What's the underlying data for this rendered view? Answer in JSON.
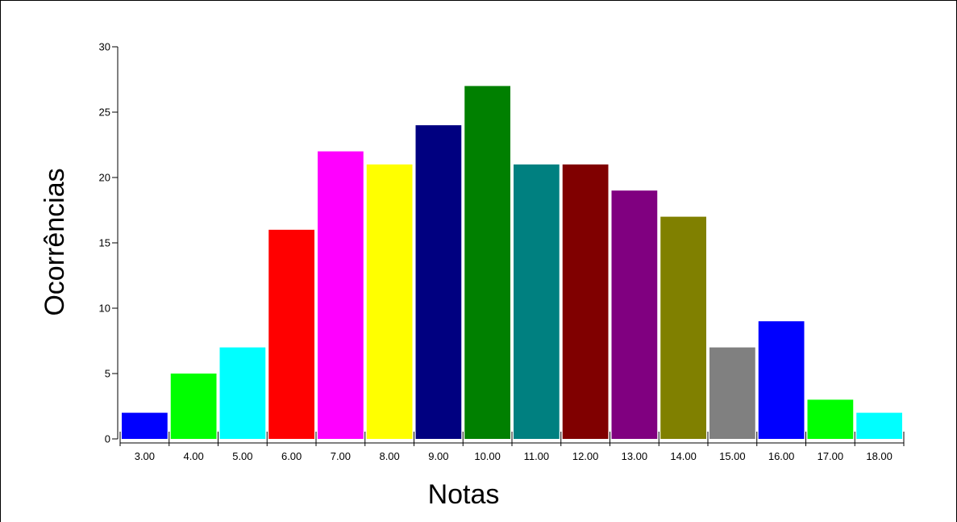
{
  "chart_data": {
    "type": "bar",
    "title": "",
    "xlabel": "Notas",
    "ylabel": "Ocorrências",
    "ylim": [
      0,
      30
    ],
    "yticks": [
      "0",
      "5",
      "10",
      "15",
      "20",
      "25",
      "30"
    ],
    "categories": [
      "3.00",
      "4.00",
      "5.00",
      "6.00",
      "7.00",
      "8.00",
      "9.00",
      "10.00",
      "11.00",
      "12.00",
      "13.00",
      "14.00",
      "15.00",
      "16.00",
      "17.00",
      "18.00"
    ],
    "values": [
      2,
      5,
      7,
      16,
      22,
      21,
      24,
      27,
      21,
      21,
      19,
      17,
      7,
      9,
      3,
      2
    ],
    "colors": [
      "#0000ff",
      "#00ff00",
      "#00ffff",
      "#ff0000",
      "#ff00ff",
      "#ffff00",
      "#000080",
      "#008000",
      "#008080",
      "#800000",
      "#800080",
      "#808000",
      "#808080",
      "#0000ff",
      "#00ff00",
      "#00ffff"
    ],
    "grid": false,
    "legend": "none"
  }
}
